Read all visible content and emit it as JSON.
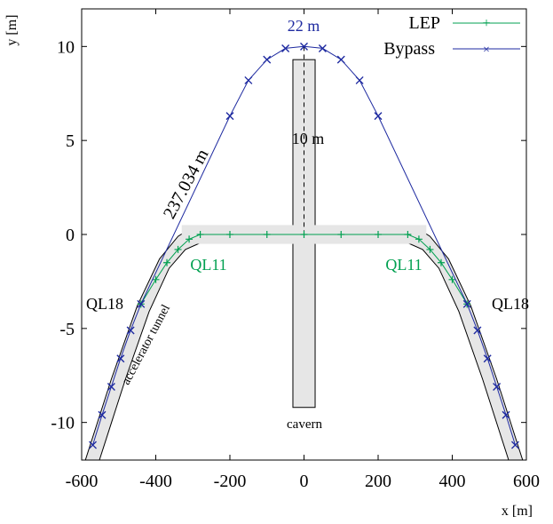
{
  "chart_data": {
    "type": "line",
    "xlabel": "x [m]",
    "ylabel": "y [m]",
    "xlim": [
      -600,
      600
    ],
    "ylim": [
      -12,
      12
    ],
    "xticks": [
      -600,
      -400,
      -200,
      0,
      200,
      400,
      600
    ],
    "yticks": [
      -10,
      -5,
      0,
      5,
      10
    ],
    "xtick_labels": [
      "-600",
      "-400",
      "-200",
      "0",
      "200",
      "400",
      "600"
    ],
    "ytick_labels": [
      "-10",
      "-5",
      "0",
      "5",
      "10"
    ],
    "grid": false,
    "legend_position": "top-right",
    "series": [
      {
        "name": "LEP",
        "color": "#00a050",
        "marker": "plus",
        "points": [
          [
            -440,
            -3.7
          ],
          [
            -400,
            -2.4
          ],
          [
            -370,
            -1.5
          ],
          [
            -340,
            -0.8
          ],
          [
            -310,
            -0.25
          ],
          [
            -280,
            0
          ],
          [
            -200,
            0
          ],
          [
            -100,
            0
          ],
          [
            0,
            0
          ],
          [
            100,
            0
          ],
          [
            200,
            0
          ],
          [
            280,
            0
          ],
          [
            310,
            -0.25
          ],
          [
            340,
            -0.8
          ],
          [
            370,
            -1.5
          ],
          [
            400,
            -2.4
          ],
          [
            440,
            -3.7
          ]
        ]
      },
      {
        "name": "Bypass",
        "color": "#1e2aa0",
        "marker": "cross",
        "points": [
          [
            -570,
            -11.2
          ],
          [
            -545,
            -9.6
          ],
          [
            -520,
            -8.1
          ],
          [
            -495,
            -6.6
          ],
          [
            -468,
            -5.1
          ],
          [
            -440,
            -3.7
          ],
          [
            -200,
            6.3
          ],
          [
            -150,
            8.2
          ],
          [
            -100,
            9.3
          ],
          [
            -50,
            9.9
          ],
          [
            0,
            10.0
          ],
          [
            50,
            9.9
          ],
          [
            100,
            9.3
          ],
          [
            150,
            8.2
          ],
          [
            200,
            6.3
          ],
          [
            440,
            -3.7
          ],
          [
            468,
            -5.1
          ],
          [
            495,
            -6.6
          ],
          [
            520,
            -8.1
          ],
          [
            545,
            -9.6
          ],
          [
            570,
            -11.2
          ]
        ]
      }
    ],
    "structures": {
      "tunnel_color": "#e6e6e6",
      "shaft_x_range": [
        -30,
        30
      ],
      "shaft_y_range": [
        -9.2,
        9.3
      ],
      "cavern_y_range": [
        -0.5,
        0.5
      ],
      "cavern_x_range": [
        -330,
        330
      ]
    },
    "annotations": {
      "top_label": "22 m",
      "shaft_label": "10 m",
      "chord_label": "237.034 m",
      "ql11_left": "QL11",
      "ql11_right": "QL11",
      "ql18_left": "QL18",
      "ql18_right": "QL18",
      "tunnel_label": "accelerator tunnel",
      "cavern_label": "cavern"
    }
  }
}
